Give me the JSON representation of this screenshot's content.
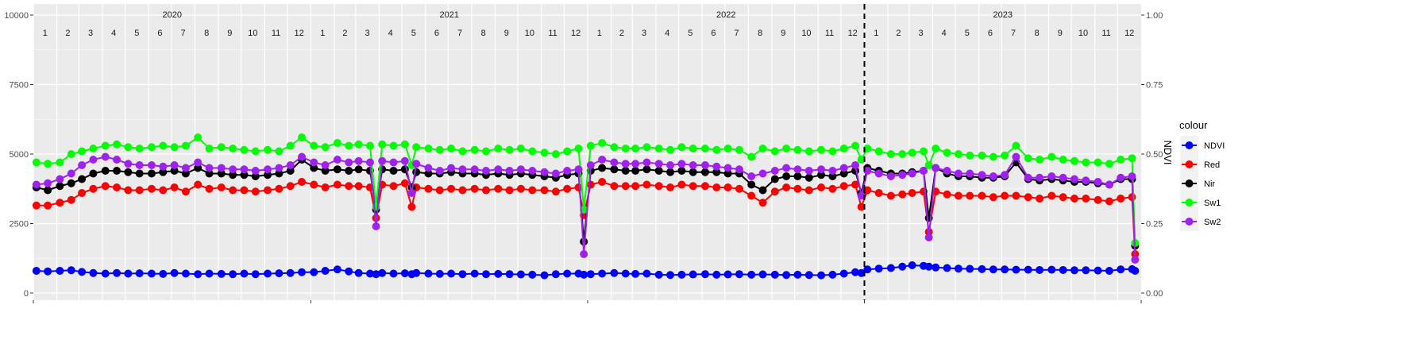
{
  "chart_data": {
    "type": "line",
    "title": "",
    "xlabel": "",
    "ylabel": "",
    "y2label": "NDVI",
    "ylim": [
      0,
      10000
    ],
    "y2lim": [
      0,
      1
    ],
    "yticks": [
      "0",
      "2500",
      "5000",
      "7500",
      "10000"
    ],
    "y2ticks": [
      "0.00",
      "0.25",
      "0.50",
      "0.75",
      "1.00"
    ],
    "years": [
      "2020",
      "2021",
      "2022",
      "2023"
    ],
    "months": [
      "1",
      "2",
      "3",
      "4",
      "5",
      "6",
      "7",
      "8",
      "9",
      "10",
      "11",
      "12"
    ],
    "vline_date": "2023-01-01",
    "grid": true,
    "legend": {
      "title": "colour",
      "position": "right"
    },
    "x": [
      "2020-01-05",
      "2020-01-20",
      "2020-02-05",
      "2020-02-20",
      "2020-03-05",
      "2020-03-20",
      "2020-04-05",
      "2020-04-20",
      "2020-05-05",
      "2020-05-20",
      "2020-06-05",
      "2020-06-20",
      "2020-07-05",
      "2020-07-20",
      "2020-08-05",
      "2020-08-20",
      "2020-09-05",
      "2020-09-20",
      "2020-10-05",
      "2020-10-20",
      "2020-11-05",
      "2020-11-20",
      "2020-12-05",
      "2020-12-20",
      "2021-01-05",
      "2021-01-20",
      "2021-02-05",
      "2021-02-20",
      "2021-03-05",
      "2021-03-20",
      "2021-03-28",
      "2021-04-05",
      "2021-04-20",
      "2021-05-05",
      "2021-05-14",
      "2021-05-20",
      "2021-06-05",
      "2021-06-20",
      "2021-07-05",
      "2021-07-20",
      "2021-08-05",
      "2021-08-20",
      "2021-09-05",
      "2021-09-20",
      "2021-10-05",
      "2021-10-20",
      "2021-11-05",
      "2021-11-20",
      "2021-12-05",
      "2021-12-20",
      "2021-12-27",
      "2022-01-05",
      "2022-01-20",
      "2022-02-05",
      "2022-02-20",
      "2022-03-05",
      "2022-03-20",
      "2022-04-05",
      "2022-04-20",
      "2022-05-05",
      "2022-05-20",
      "2022-06-05",
      "2022-06-20",
      "2022-07-05",
      "2022-07-20",
      "2022-08-05",
      "2022-08-20",
      "2022-09-05",
      "2022-09-20",
      "2022-10-05",
      "2022-10-20",
      "2022-11-05",
      "2022-11-20",
      "2022-12-05",
      "2022-12-20",
      "2022-12-28",
      "2023-01-05",
      "2023-01-20",
      "2023-02-05",
      "2023-02-20",
      "2023-03-05",
      "2023-03-20",
      "2023-03-27",
      "2023-04-05",
      "2023-04-20",
      "2023-05-05",
      "2023-05-20",
      "2023-06-05",
      "2023-06-20",
      "2023-07-05",
      "2023-07-20",
      "2023-08-05",
      "2023-08-20",
      "2023-09-05",
      "2023-09-20",
      "2023-10-05",
      "2023-10-20",
      "2023-11-05",
      "2023-11-20",
      "2023-12-05",
      "2023-12-20",
      "2023-12-24"
    ],
    "series": [
      {
        "name": "NDVI",
        "color": "#0000ff",
        "axis": "right",
        "values": [
          0.08,
          0.078,
          0.08,
          0.082,
          0.076,
          0.072,
          0.07,
          0.072,
          0.07,
          0.071,
          0.07,
          0.069,
          0.072,
          0.07,
          0.068,
          0.07,
          0.069,
          0.068,
          0.07,
          0.068,
          0.07,
          0.071,
          0.072,
          0.075,
          0.075,
          0.08,
          0.085,
          0.078,
          0.072,
          0.07,
          0.068,
          0.072,
          0.07,
          0.071,
          0.068,
          0.072,
          0.07,
          0.069,
          0.07,
          0.068,
          0.07,
          0.068,
          0.069,
          0.068,
          0.067,
          0.066,
          0.064,
          0.068,
          0.07,
          0.07,
          0.066,
          0.068,
          0.07,
          0.072,
          0.07,
          0.069,
          0.07,
          0.066,
          0.065,
          0.066,
          0.067,
          0.068,
          0.066,
          0.067,
          0.068,
          0.066,
          0.067,
          0.066,
          0.065,
          0.066,
          0.065,
          0.064,
          0.066,
          0.07,
          0.075,
          0.072,
          0.085,
          0.088,
          0.09,
          0.095,
          0.1,
          0.098,
          0.095,
          0.092,
          0.09,
          0.088,
          0.087,
          0.086,
          0.085,
          0.085,
          0.084,
          0.084,
          0.083,
          0.084,
          0.083,
          0.082,
          0.082,
          0.081,
          0.08,
          0.085,
          0.086,
          0.08
        ]
      },
      {
        "name": "Red",
        "color": "#ff0000",
        "axis": "left",
        "values": [
          3150,
          3150,
          3250,
          3350,
          3600,
          3750,
          3850,
          3800,
          3700,
          3700,
          3750,
          3700,
          3800,
          3650,
          3900,
          3750,
          3800,
          3700,
          3700,
          3650,
          3700,
          3750,
          3850,
          4000,
          3900,
          3800,
          3900,
          3850,
          3850,
          3800,
          2700,
          3900,
          3850,
          3950,
          3100,
          3800,
          3750,
          3700,
          3750,
          3700,
          3750,
          3700,
          3750,
          3700,
          3750,
          3700,
          3700,
          3650,
          3750,
          3800,
          2800,
          3900,
          4000,
          3850,
          3850,
          3850,
          3900,
          3850,
          3800,
          3900,
          3850,
          3850,
          3800,
          3800,
          3750,
          3500,
          3250,
          3650,
          3800,
          3750,
          3700,
          3800,
          3750,
          3850,
          3900,
          3100,
          3700,
          3600,
          3500,
          3550,
          3600,
          3650,
          2200,
          3650,
          3550,
          3500,
          3500,
          3500,
          3450,
          3500,
          3500,
          3450,
          3400,
          3500,
          3450,
          3400,
          3400,
          3350,
          3300,
          3400,
          3450,
          1400
        ]
      },
      {
        "name": "Nir",
        "color": "#000000",
        "axis": "left",
        "values": [
          3800,
          3700,
          3850,
          3950,
          4100,
          4300,
          4400,
          4400,
          4350,
          4300,
          4300,
          4350,
          4400,
          4300,
          4500,
          4300,
          4300,
          4250,
          4250,
          4200,
          4250,
          4300,
          4400,
          4800,
          4500,
          4400,
          4450,
          4400,
          4450,
          4400,
          3000,
          4450,
          4400,
          4450,
          3800,
          4350,
          4300,
          4300,
          4350,
          4300,
          4300,
          4250,
          4300,
          4250,
          4300,
          4250,
          4200,
          4150,
          4250,
          4300,
          1850,
          4400,
          4500,
          4450,
          4400,
          4400,
          4450,
          4400,
          4350,
          4400,
          4350,
          4350,
          4350,
          4300,
          4300,
          3900,
          3700,
          4100,
          4200,
          4200,
          4150,
          4250,
          4200,
          4300,
          4400,
          3600,
          4500,
          4400,
          4300,
          4300,
          4350,
          4400,
          2700,
          4500,
          4300,
          4200,
          4200,
          4150,
          4150,
          4200,
          4700,
          4100,
          4050,
          4100,
          4050,
          4000,
          4000,
          3950,
          3900,
          4100,
          4100,
          1700
        ]
      },
      {
        "name": "Sw1",
        "color": "#00ff00",
        "axis": "left",
        "values": [
          4700,
          4650,
          4700,
          5000,
          5100,
          5200,
          5300,
          5350,
          5250,
          5200,
          5250,
          5300,
          5250,
          5300,
          5600,
          5200,
          5250,
          5200,
          5150,
          5100,
          5150,
          5100,
          5300,
          5600,
          5300,
          5250,
          5400,
          5300,
          5350,
          5300,
          3100,
          5350,
          5300,
          5350,
          4600,
          5250,
          5200,
          5150,
          5200,
          5100,
          5150,
          5100,
          5200,
          5150,
          5200,
          5100,
          5050,
          5000,
          5100,
          5200,
          3000,
          5300,
          5400,
          5250,
          5200,
          5200,
          5250,
          5200,
          5150,
          5250,
          5200,
          5200,
          5150,
          5200,
          5150,
          4900,
          5200,
          5100,
          5200,
          5150,
          5100,
          5150,
          5100,
          5200,
          5300,
          4800,
          5200,
          5100,
          5000,
          5000,
          5050,
          5100,
          4600,
          5200,
          5050,
          5000,
          4950,
          4950,
          4900,
          4950,
          5300,
          4850,
          4800,
          4900,
          4800,
          4750,
          4700,
          4700,
          4650,
          4800,
          4850,
          1800
        ]
      },
      {
        "name": "Sw2",
        "color": "#a020f0",
        "axis": "left",
        "values": [
          3900,
          3950,
          4100,
          4300,
          4600,
          4800,
          4900,
          4800,
          4650,
          4600,
          4600,
          4550,
          4600,
          4500,
          4700,
          4500,
          4500,
          4450,
          4450,
          4400,
          4450,
          4500,
          4600,
          4900,
          4700,
          4600,
          4800,
          4700,
          4750,
          4700,
          2400,
          4750,
          4700,
          4750,
          3600,
          4650,
          4500,
          4400,
          4500,
          4450,
          4450,
          4400,
          4450,
          4400,
          4450,
          4400,
          4350,
          4300,
          4400,
          4450,
          1400,
          4600,
          4800,
          4700,
          4650,
          4650,
          4700,
          4650,
          4600,
          4650,
          4600,
          4600,
          4550,
          4500,
          4450,
          4200,
          4300,
          4400,
          4500,
          4450,
          4400,
          4450,
          4400,
          4500,
          4600,
          3500,
          4400,
          4300,
          4200,
          4250,
          4300,
          4400,
          2000,
          4500,
          4400,
          4300,
          4300,
          4250,
          4200,
          4250,
          4900,
          4150,
          4150,
          4200,
          4150,
          4100,
          4050,
          4000,
          3900,
          4150,
          4200,
          1200
        ]
      }
    ]
  }
}
